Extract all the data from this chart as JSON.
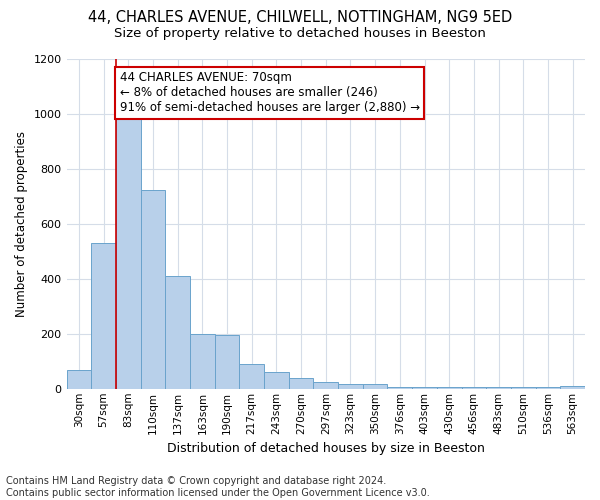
{
  "title1": "44, CHARLES AVENUE, CHILWELL, NOTTINGHAM, NG9 5ED",
  "title2": "Size of property relative to detached houses in Beeston",
  "xlabel": "Distribution of detached houses by size in Beeston",
  "ylabel": "Number of detached properties",
  "categories": [
    "30sqm",
    "57sqm",
    "83sqm",
    "110sqm",
    "137sqm",
    "163sqm",
    "190sqm",
    "217sqm",
    "243sqm",
    "270sqm",
    "297sqm",
    "323sqm",
    "350sqm",
    "376sqm",
    "403sqm",
    "430sqm",
    "456sqm",
    "483sqm",
    "510sqm",
    "536sqm",
    "563sqm"
  ],
  "values": [
    70,
    530,
    1000,
    725,
    410,
    200,
    195,
    90,
    60,
    38,
    25,
    18,
    18,
    5,
    5,
    5,
    5,
    5,
    5,
    5,
    10
  ],
  "bar_color": "#b8d0ea",
  "bar_edge_color": "#6aa3cc",
  "grid_color": "#d5dde8",
  "annotation_text_line1": "44 CHARLES AVENUE: 70sqm",
  "annotation_text_line2": "← 8% of detached houses are smaller (246)",
  "annotation_text_line3": "91% of semi-detached houses are larger (2,880) →",
  "annotation_box_color": "#ffffff",
  "annotation_box_edge_color": "#cc0000",
  "vline_color": "#cc0000",
  "vline_x": 1.5,
  "footnote": "Contains HM Land Registry data © Crown copyright and database right 2024.\nContains public sector information licensed under the Open Government Licence v3.0.",
  "ylim": [
    0,
    1200
  ],
  "title1_fontsize": 10.5,
  "title2_fontsize": 9.5,
  "xlabel_fontsize": 9,
  "ylabel_fontsize": 8.5,
  "tick_fontsize": 7.5,
  "annotation_fontsize": 8.5,
  "footnote_fontsize": 7
}
